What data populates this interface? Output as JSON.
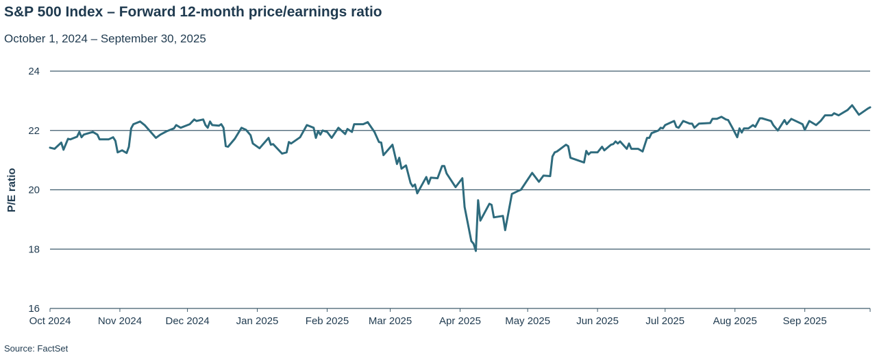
{
  "title": "S&P 500 Index – Forward 12-month price/earnings ratio",
  "subtitle": "October 1, 2024 – September 30, 2025",
  "source": "Source: FactSet",
  "colors": {
    "line": "#2e6b7d",
    "grid": "#3d5a6b",
    "text": "#1f3a4f"
  },
  "chart_data": {
    "type": "line",
    "title": "S&P 500 Index – Forward 12-month price/earnings ratio",
    "subtitle": "October 1, 2024 – September 30, 2025",
    "ylabel": "P/E ratio",
    "xlabel": "",
    "ylim": [
      16,
      24
    ],
    "yticks": [
      16,
      18,
      20,
      22,
      24
    ],
    "xlim": [
      "2024-10-01",
      "2025-09-30"
    ],
    "xticks": [
      {
        "date": "2024-10-01",
        "label": "Oct 2024"
      },
      {
        "date": "2024-11-01",
        "label": "Nov 2024"
      },
      {
        "date": "2024-12-01",
        "label": "Dec 2024"
      },
      {
        "date": "2025-01-01",
        "label": "Jan 2025"
      },
      {
        "date": "2025-02-01",
        "label": "Feb 2025"
      },
      {
        "date": "2025-03-01",
        "label": "Mar 2025"
      },
      {
        "date": "2025-04-01",
        "label": "Apr 2025"
      },
      {
        "date": "2025-05-01",
        "label": "May 2025"
      },
      {
        "date": "2025-06-01",
        "label": "Jun 2025"
      },
      {
        "date": "2025-07-01",
        "label": "Jul 2025"
      },
      {
        "date": "2025-08-01",
        "label": "Aug 2025"
      },
      {
        "date": "2025-09-01",
        "label": "Sep 2025"
      }
    ],
    "grid": true,
    "legend": "none",
    "series": [
      {
        "points": [
          [
            "2024-10-01",
            21.42
          ],
          [
            "2024-10-03",
            21.38
          ],
          [
            "2024-10-06",
            21.59
          ],
          [
            "2024-10-07",
            21.35
          ],
          [
            "2024-10-09",
            21.72
          ],
          [
            "2024-10-10",
            21.7
          ],
          [
            "2024-10-13",
            21.79
          ],
          [
            "2024-10-14",
            21.95
          ],
          [
            "2024-10-15",
            21.77
          ],
          [
            "2024-10-16",
            21.86
          ],
          [
            "2024-10-20",
            21.95
          ],
          [
            "2024-10-22",
            21.86
          ],
          [
            "2024-10-23",
            21.7
          ],
          [
            "2024-10-27",
            21.7
          ],
          [
            "2024-10-29",
            21.77
          ],
          [
            "2024-10-30",
            21.65
          ],
          [
            "2024-10-31",
            21.26
          ],
          [
            "2024-11-02",
            21.33
          ],
          [
            "2024-11-04",
            21.24
          ],
          [
            "2024-11-05",
            21.45
          ],
          [
            "2024-11-06",
            22.07
          ],
          [
            "2024-11-07",
            22.21
          ],
          [
            "2024-11-10",
            22.3
          ],
          [
            "2024-11-12",
            22.18
          ],
          [
            "2024-11-17",
            21.75
          ],
          [
            "2024-11-19",
            21.86
          ],
          [
            "2024-11-22",
            21.98
          ],
          [
            "2024-11-25",
            22.07
          ],
          [
            "2024-11-26",
            22.18
          ],
          [
            "2024-11-28",
            22.09
          ],
          [
            "2024-12-02",
            22.21
          ],
          [
            "2024-12-04",
            22.37
          ],
          [
            "2024-12-05",
            22.32
          ],
          [
            "2024-12-08",
            22.37
          ],
          [
            "2024-12-09",
            22.18
          ],
          [
            "2024-12-10",
            22.09
          ],
          [
            "2024-12-11",
            22.3
          ],
          [
            "2024-12-12",
            22.18
          ],
          [
            "2024-12-15",
            22.16
          ],
          [
            "2024-12-16",
            22.21
          ],
          [
            "2024-12-17",
            22.09
          ],
          [
            "2024-12-18",
            21.47
          ],
          [
            "2024-12-19",
            21.45
          ],
          [
            "2024-12-22",
            21.72
          ],
          [
            "2024-12-25",
            22.09
          ],
          [
            "2024-12-27",
            22.02
          ],
          [
            "2024-12-29",
            21.84
          ],
          [
            "2024-12-30",
            21.56
          ],
          [
            "2025-01-02",
            21.4
          ],
          [
            "2025-01-06",
            21.75
          ],
          [
            "2025-01-07",
            21.52
          ],
          [
            "2025-01-08",
            21.54
          ],
          [
            "2025-01-12",
            21.22
          ],
          [
            "2025-01-14",
            21.26
          ],
          [
            "2025-01-15",
            21.61
          ],
          [
            "2025-01-16",
            21.56
          ],
          [
            "2025-01-20",
            21.77
          ],
          [
            "2025-01-23",
            22.18
          ],
          [
            "2025-01-26",
            22.09
          ],
          [
            "2025-01-27",
            21.75
          ],
          [
            "2025-01-28",
            21.98
          ],
          [
            "2025-01-29",
            21.86
          ],
          [
            "2025-01-30",
            22.0
          ],
          [
            "2025-02-01",
            21.95
          ],
          [
            "2025-02-03",
            21.75
          ],
          [
            "2025-02-06",
            22.09
          ],
          [
            "2025-02-09",
            21.88
          ],
          [
            "2025-02-10",
            22.05
          ],
          [
            "2025-02-12",
            21.95
          ],
          [
            "2025-02-13",
            22.21
          ],
          [
            "2025-02-17",
            22.21
          ],
          [
            "2025-02-19",
            22.28
          ],
          [
            "2025-02-22",
            21.95
          ],
          [
            "2025-02-24",
            21.61
          ],
          [
            "2025-02-25",
            21.59
          ],
          [
            "2025-02-26",
            21.17
          ],
          [
            "2025-03-02",
            21.52
          ],
          [
            "2025-03-04",
            20.87
          ],
          [
            "2025-03-05",
            21.08
          ],
          [
            "2025-03-06",
            20.71
          ],
          [
            "2025-03-08",
            20.82
          ],
          [
            "2025-03-10",
            20.23
          ],
          [
            "2025-03-11",
            20.11
          ],
          [
            "2025-03-12",
            20.18
          ],
          [
            "2025-03-13",
            19.88
          ],
          [
            "2025-03-17",
            20.43
          ],
          [
            "2025-03-18",
            20.2
          ],
          [
            "2025-03-19",
            20.41
          ],
          [
            "2025-03-22",
            20.39
          ],
          [
            "2025-03-24",
            20.8
          ],
          [
            "2025-03-25",
            20.8
          ],
          [
            "2025-03-26",
            20.55
          ],
          [
            "2025-03-30",
            20.09
          ],
          [
            "2025-04-02",
            20.39
          ],
          [
            "2025-04-03",
            19.42
          ],
          [
            "2025-04-06",
            18.27
          ],
          [
            "2025-04-07",
            18.18
          ],
          [
            "2025-04-08",
            17.94
          ],
          [
            "2025-04-09",
            19.65
          ],
          [
            "2025-04-10",
            18.96
          ],
          [
            "2025-04-14",
            19.53
          ],
          [
            "2025-04-15",
            19.49
          ],
          [
            "2025-04-16",
            19.07
          ],
          [
            "2025-04-20",
            19.12
          ],
          [
            "2025-04-21",
            18.64
          ],
          [
            "2025-04-24",
            19.86
          ],
          [
            "2025-04-27",
            19.97
          ],
          [
            "2025-04-28",
            20.0
          ],
          [
            "2025-04-30",
            20.23
          ],
          [
            "2025-05-03",
            20.57
          ],
          [
            "2025-05-06",
            20.27
          ],
          [
            "2025-05-08",
            20.48
          ],
          [
            "2025-05-11",
            20.46
          ],
          [
            "2025-05-12",
            21.12
          ],
          [
            "2025-05-13",
            21.26
          ],
          [
            "2025-05-14",
            21.29
          ],
          [
            "2025-05-18",
            21.52
          ],
          [
            "2025-05-19",
            21.47
          ],
          [
            "2025-05-20",
            21.08
          ],
          [
            "2025-05-26",
            20.92
          ],
          [
            "2025-05-27",
            21.31
          ],
          [
            "2025-05-28",
            21.19
          ],
          [
            "2025-05-29",
            21.26
          ],
          [
            "2025-06-01",
            21.26
          ],
          [
            "2025-06-03",
            21.45
          ],
          [
            "2025-06-04",
            21.33
          ],
          [
            "2025-06-07",
            21.52
          ],
          [
            "2025-06-08",
            21.54
          ],
          [
            "2025-06-09",
            21.63
          ],
          [
            "2025-06-10",
            21.56
          ],
          [
            "2025-06-11",
            21.63
          ],
          [
            "2025-06-14",
            21.38
          ],
          [
            "2025-06-15",
            21.56
          ],
          [
            "2025-06-16",
            21.38
          ],
          [
            "2025-06-19",
            21.38
          ],
          [
            "2025-06-21",
            21.29
          ],
          [
            "2025-06-23",
            21.75
          ],
          [
            "2025-06-24",
            21.75
          ],
          [
            "2025-06-25",
            21.91
          ],
          [
            "2025-06-28",
            22.0
          ],
          [
            "2025-06-29",
            22.09
          ],
          [
            "2025-06-30",
            22.07
          ],
          [
            "2025-07-01",
            22.18
          ],
          [
            "2025-07-05",
            22.32
          ],
          [
            "2025-07-06",
            22.12
          ],
          [
            "2025-07-07",
            22.09
          ],
          [
            "2025-07-09",
            22.32
          ],
          [
            "2025-07-12",
            22.23
          ],
          [
            "2025-07-13",
            22.23
          ],
          [
            "2025-07-14",
            22.09
          ],
          [
            "2025-07-16",
            22.23
          ],
          [
            "2025-07-21",
            22.25
          ],
          [
            "2025-07-22",
            22.39
          ],
          [
            "2025-07-24",
            22.39
          ],
          [
            "2025-07-26",
            22.46
          ],
          [
            "2025-07-28",
            22.37
          ],
          [
            "2025-07-29",
            22.35
          ],
          [
            "2025-07-31",
            22.07
          ],
          [
            "2025-08-02",
            21.77
          ],
          [
            "2025-08-03",
            22.07
          ],
          [
            "2025-08-04",
            21.93
          ],
          [
            "2025-08-05",
            22.07
          ],
          [
            "2025-08-07",
            22.07
          ],
          [
            "2025-08-09",
            22.18
          ],
          [
            "2025-08-10",
            22.12
          ],
          [
            "2025-08-12",
            22.41
          ],
          [
            "2025-08-13",
            22.41
          ],
          [
            "2025-08-17",
            22.32
          ],
          [
            "2025-08-18",
            22.18
          ],
          [
            "2025-08-20",
            22.0
          ],
          [
            "2025-08-23",
            22.35
          ],
          [
            "2025-08-24",
            22.21
          ],
          [
            "2025-08-26",
            22.39
          ],
          [
            "2025-08-31",
            22.21
          ],
          [
            "2025-09-01",
            22.02
          ],
          [
            "2025-09-03",
            22.32
          ],
          [
            "2025-09-06",
            22.18
          ],
          [
            "2025-09-08",
            22.32
          ],
          [
            "2025-09-10",
            22.51
          ],
          [
            "2025-09-13",
            22.51
          ],
          [
            "2025-09-14",
            22.58
          ],
          [
            "2025-09-16",
            22.51
          ],
          [
            "2025-09-18",
            22.6
          ],
          [
            "2025-09-20",
            22.69
          ],
          [
            "2025-09-22",
            22.85
          ],
          [
            "2025-09-25",
            22.53
          ],
          [
            "2025-09-29",
            22.74
          ],
          [
            "2025-09-30",
            22.78
          ]
        ]
      }
    ]
  }
}
